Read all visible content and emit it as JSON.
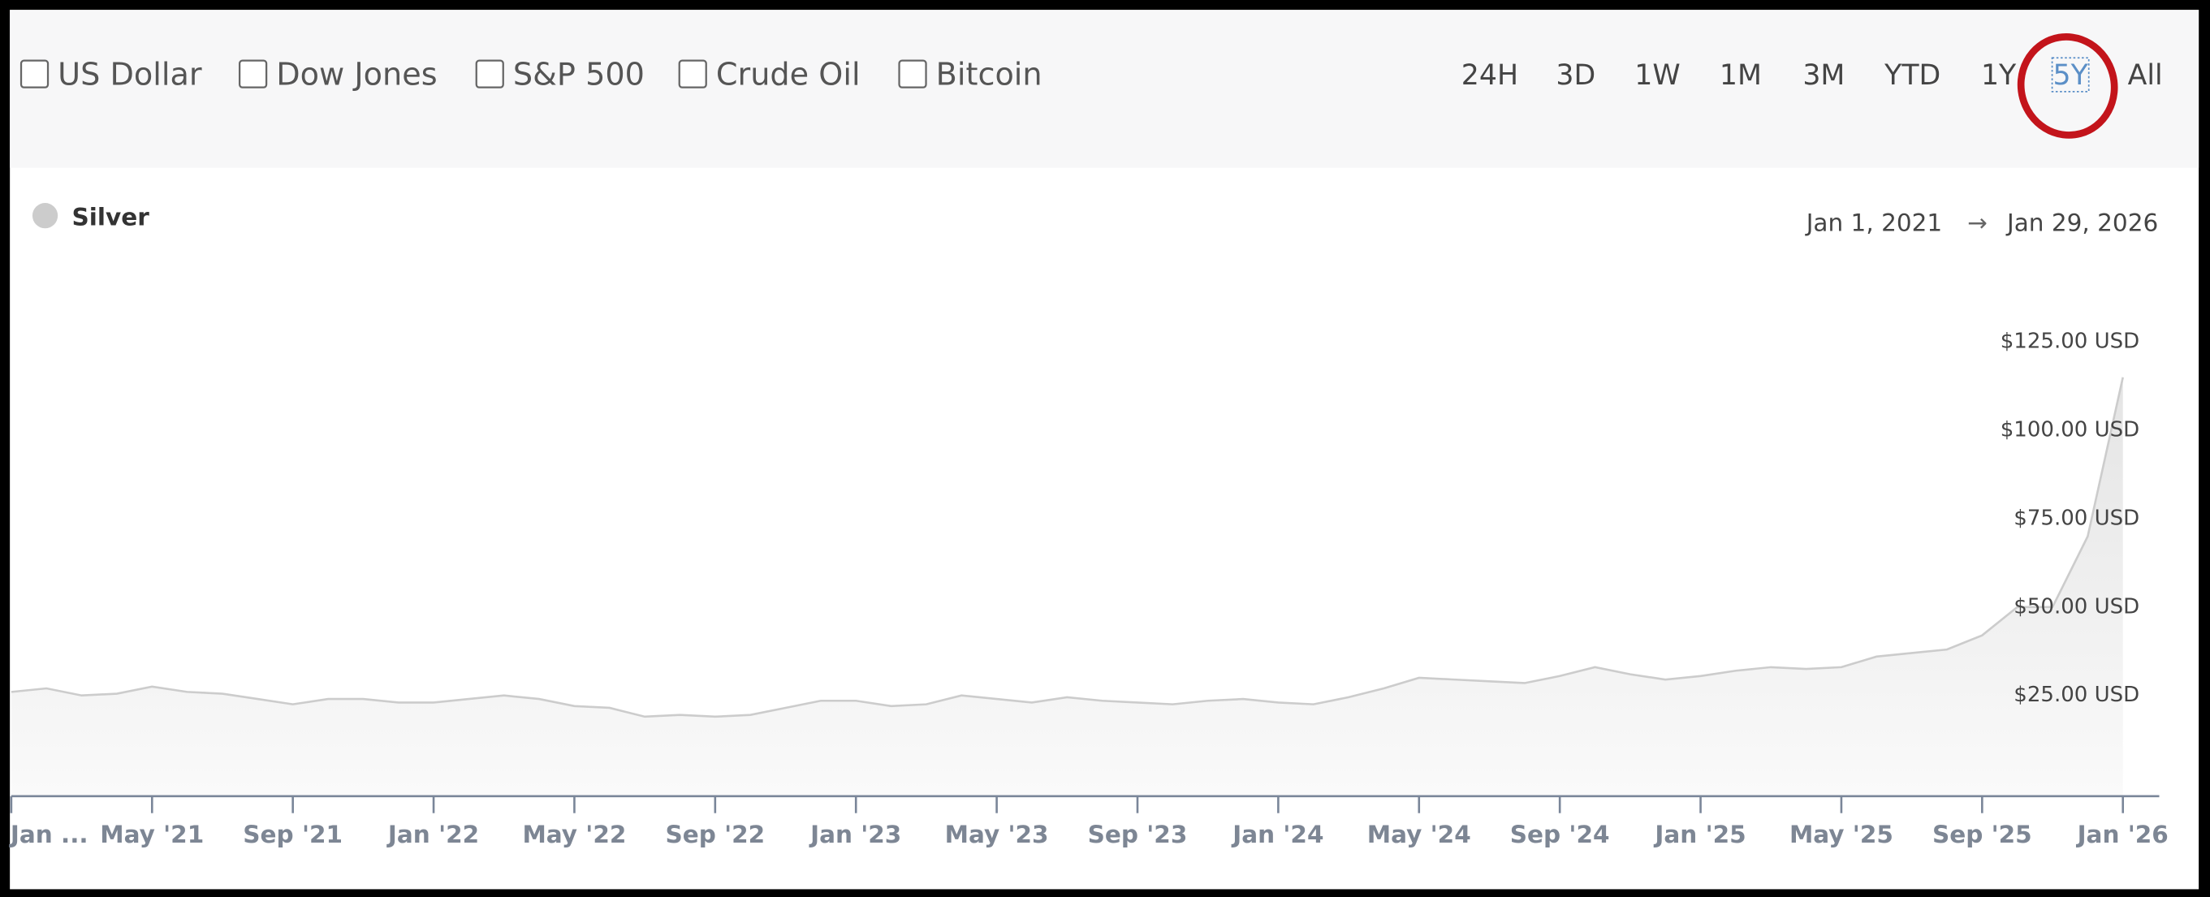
{
  "toolbar": {
    "compare": [
      "US Dollar",
      "Dow Jones",
      "S&P 500",
      "Crude Oil",
      "Bitcoin"
    ],
    "ranges": [
      "24H",
      "3D",
      "1W",
      "1M",
      "3M",
      "YTD",
      "1Y",
      "5Y",
      "All"
    ],
    "active_range": 7
  },
  "date_range": {
    "from": "Jan 1, 2021",
    "arrow": "→",
    "to": "Jan 29, 2026"
  },
  "chart_data": {
    "type": "area",
    "categories": [
      "Jan ...",
      null,
      null,
      null,
      "May '21",
      null,
      null,
      null,
      "Sep '21",
      null,
      null,
      null,
      "Jan '22",
      null,
      null,
      null,
      "May '22",
      null,
      null,
      null,
      "Sep '22",
      null,
      null,
      null,
      "Jan '23",
      null,
      null,
      null,
      "May '23",
      null,
      null,
      null,
      "Sep '23",
      null,
      null,
      null,
      "Jan '24",
      null,
      null,
      null,
      "May '24",
      null,
      null,
      null,
      "Sep '24",
      null,
      null,
      null,
      "Jan '25",
      null,
      null,
      null,
      "May '25",
      null,
      null,
      null,
      "Sep '25",
      null,
      null,
      null,
      "Jan '26"
    ],
    "series": [
      {
        "name": "Silver",
        "color": "#cccccc",
        "values": [
          26,
          27,
          25,
          25.5,
          27.5,
          26,
          25.5,
          24,
          22.5,
          24,
          24,
          23,
          23,
          24,
          25,
          24,
          22,
          21.5,
          19,
          19.5,
          19,
          19.5,
          21.5,
          23.5,
          23.5,
          22,
          22.5,
          25,
          24,
          23,
          24.5,
          23.5,
          23,
          22.5,
          23.5,
          24,
          23,
          22.5,
          24.5,
          27,
          30,
          29.5,
          29,
          28.5,
          30.5,
          33,
          31,
          29.5,
          30.5,
          32,
          33,
          32.5,
          33,
          36,
          37,
          38,
          42,
          50,
          50,
          70,
          115
        ]
      }
    ],
    "ylim": [
      -3.5,
      140
    ],
    "yticks": [
      {
        "value": 25,
        "label": "$25.00 USD"
      },
      {
        "value": 50,
        "label": "$50.00 USD"
      },
      {
        "value": 75,
        "label": "$75.00 USD"
      },
      {
        "value": 100,
        "label": "$100.00 USD"
      },
      {
        "value": 125,
        "label": "$125.00 USD"
      }
    ]
  }
}
